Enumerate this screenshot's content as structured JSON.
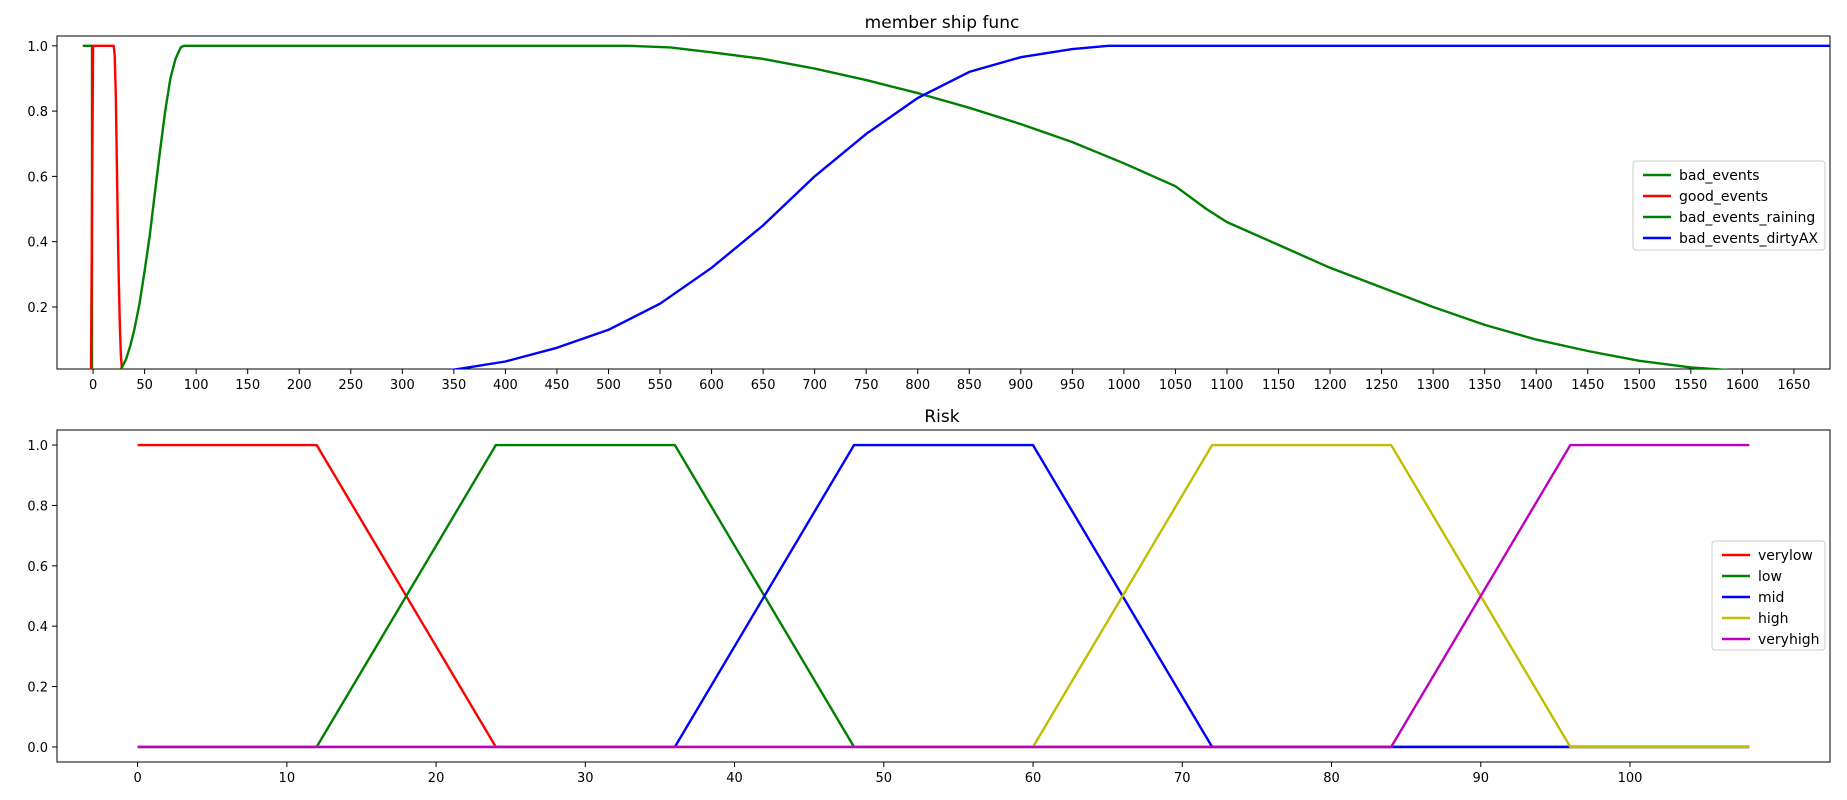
{
  "chart_data": [
    {
      "type": "line",
      "title": "member ship func",
      "xlabel": "",
      "ylabel": "",
      "xlim": [
        -35,
        1685
      ],
      "ylim": [
        0.01,
        1.03
      ],
      "xticks": [
        0,
        50,
        100,
        150,
        200,
        250,
        300,
        350,
        400,
        450,
        500,
        550,
        600,
        650,
        700,
        750,
        800,
        850,
        900,
        950,
        1000,
        1050,
        1100,
        1150,
        1200,
        1250,
        1300,
        1350,
        1400,
        1450,
        1500,
        1550,
        1600,
        1650
      ],
      "yticks": [
        0.2,
        0.4,
        0.6,
        0.8,
        1.0
      ],
      "ytick_labels": [
        "0.2",
        "0.4",
        "0.6",
        "0.8",
        "1.0"
      ],
      "grid": false,
      "legend_position": "center-right",
      "series": [
        {
          "name": "bad_events",
          "color": "#008000",
          "x": [
            -10,
            -1,
            -1
          ],
          "y": [
            1.0,
            1.0,
            0.0
          ]
        },
        {
          "name": "good_events",
          "color": "#ff0000",
          "x": [
            -2,
            -1,
            0,
            20,
            21,
            22,
            23,
            24,
            25,
            26,
            27,
            28,
            29
          ],
          "y": [
            0.0,
            0.5,
            1.0,
            1.0,
            0.97,
            0.85,
            0.65,
            0.45,
            0.28,
            0.14,
            0.05,
            0.01,
            0.0
          ]
        },
        {
          "name": "bad_events_raining",
          "color": "#008000",
          "x": [
            25,
            28,
            32,
            36,
            40,
            45,
            50,
            55,
            60,
            65,
            70,
            75,
            80,
            85,
            88,
            100,
            200,
            300,
            400,
            520,
            560,
            600,
            650,
            700,
            750,
            800,
            850,
            900,
            950,
            1000,
            1050,
            1080,
            1100,
            1150,
            1200,
            1250,
            1300,
            1350,
            1400,
            1450,
            1500,
            1550,
            1600,
            1630
          ],
          "y": [
            0.0,
            0.015,
            0.04,
            0.08,
            0.13,
            0.21,
            0.31,
            0.42,
            0.55,
            0.68,
            0.8,
            0.9,
            0.96,
            0.995,
            1.0,
            1.0,
            1.0,
            1.0,
            1.0,
            1.0,
            0.995,
            0.98,
            0.96,
            0.93,
            0.895,
            0.855,
            0.81,
            0.76,
            0.705,
            0.64,
            0.57,
            0.5,
            0.46,
            0.39,
            0.32,
            0.26,
            0.2,
            0.145,
            0.1,
            0.065,
            0.035,
            0.015,
            0.004,
            0.0
          ]
        },
        {
          "name": "bad_events_dirtyAX",
          "color": "#0000ff",
          "x": [
            300,
            330,
            350,
            400,
            450,
            500,
            550,
            600,
            650,
            700,
            750,
            800,
            850,
            900,
            950,
            985,
            1000,
            1100,
            1200,
            1300,
            1400,
            1500,
            1600,
            1685
          ],
          "y": [
            0.0,
            0.003,
            0.008,
            0.033,
            0.075,
            0.13,
            0.21,
            0.32,
            0.45,
            0.6,
            0.73,
            0.84,
            0.92,
            0.965,
            0.99,
            1.0,
            1.0,
            1.0,
            1.0,
            1.0,
            1.0,
            1.0,
            1.0,
            1.0
          ]
        }
      ]
    },
    {
      "type": "line",
      "title": "Risk",
      "xlabel": "",
      "ylabel": "",
      "xlim": [
        -5.4,
        113.4
      ],
      "ylim": [
        -0.05,
        1.05
      ],
      "xticks": [
        0,
        10,
        20,
        30,
        40,
        50,
        60,
        70,
        80,
        90,
        100
      ],
      "yticks": [
        0.0,
        0.2,
        0.4,
        0.6,
        0.8,
        1.0
      ],
      "ytick_labels": [
        "0.0",
        "0.2",
        "0.4",
        "0.6",
        "0.8",
        "1.0"
      ],
      "grid": false,
      "legend_position": "center-right",
      "series": [
        {
          "name": "verylow",
          "color": "#ff0000",
          "x": [
            0,
            12,
            24,
            108
          ],
          "y": [
            1,
            1,
            0,
            0
          ]
        },
        {
          "name": "low",
          "color": "#008000",
          "x": [
            0,
            12,
            24,
            36,
            48,
            108
          ],
          "y": [
            0,
            0,
            1,
            1,
            0,
            0
          ]
        },
        {
          "name": "mid",
          "color": "#0000ff",
          "x": [
            0,
            36,
            48,
            60,
            72,
            108
          ],
          "y": [
            0,
            0,
            1,
            1,
            0,
            0
          ]
        },
        {
          "name": "high",
          "color": "#bfbf00",
          "x": [
            0,
            60,
            72,
            84,
            96,
            108
          ],
          "y": [
            0,
            0,
            1,
            1,
            0,
            0
          ]
        },
        {
          "name": "veryhigh",
          "color": "#bf00bf",
          "x": [
            0,
            84,
            96,
            108
          ],
          "y": [
            0,
            0,
            1,
            1
          ]
        }
      ]
    }
  ]
}
